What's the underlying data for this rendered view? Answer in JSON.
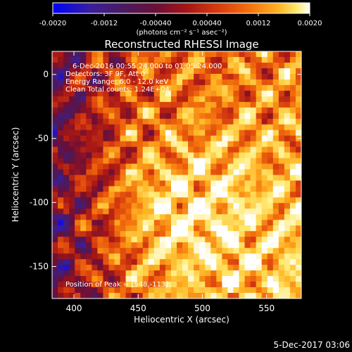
{
  "chart_data": {
    "type": "heatmap",
    "title": "Reconstructed RHESSI Image",
    "xlabel": "Heliocentric X (arcsec)",
    "ylabel": "Heliocentric Y (arcsec)",
    "xlim": [
      383,
      577
    ],
    "ylim": [
      -175,
      18
    ],
    "x_ticks": [
      400,
      450,
      500,
      550
    ],
    "y_ticks": [
      0,
      -50,
      -100,
      -150
    ],
    "colorbar": {
      "range": [
        -0.002,
        0.002
      ],
      "tick_values": [
        -0.002,
        -0.0012,
        -0.0004,
        0.0004,
        0.0012,
        0.002
      ],
      "tick_labels": [
        "-0.0020",
        "-0.0012",
        "-0.00040",
        "0.00040",
        "0.0012",
        "0.0020"
      ],
      "units_label": "(photons cm⁻² s⁻¹ asec⁻²)"
    },
    "info_lines": [
      "6-Dec-2016 00:55:24.000 to 01:05:24.000",
      "Detectors: 3F 9F, Att 0",
      "Energy Range: 6.0 - 12.0 keV",
      "Clean    Total counts: 1.24E+04"
    ],
    "peak_label": "Position of Peak = [548,-113]",
    "peak_position": [
      548,
      -113
    ],
    "grid": false,
    "colormap": "red-temperature",
    "colors": {
      "background": "#000000",
      "axes": "#ffffff",
      "cmap_stops": [
        "#0000ff",
        "#3a1f9a",
        "#4b1a5e",
        "#6a0f3a",
        "#a41616",
        "#d63a0f",
        "#f26e0c",
        "#ffb424",
        "#ffea70",
        "#ffffff"
      ]
    }
  },
  "footer": {
    "timestamp": "5-Dec-2017 03:06"
  }
}
